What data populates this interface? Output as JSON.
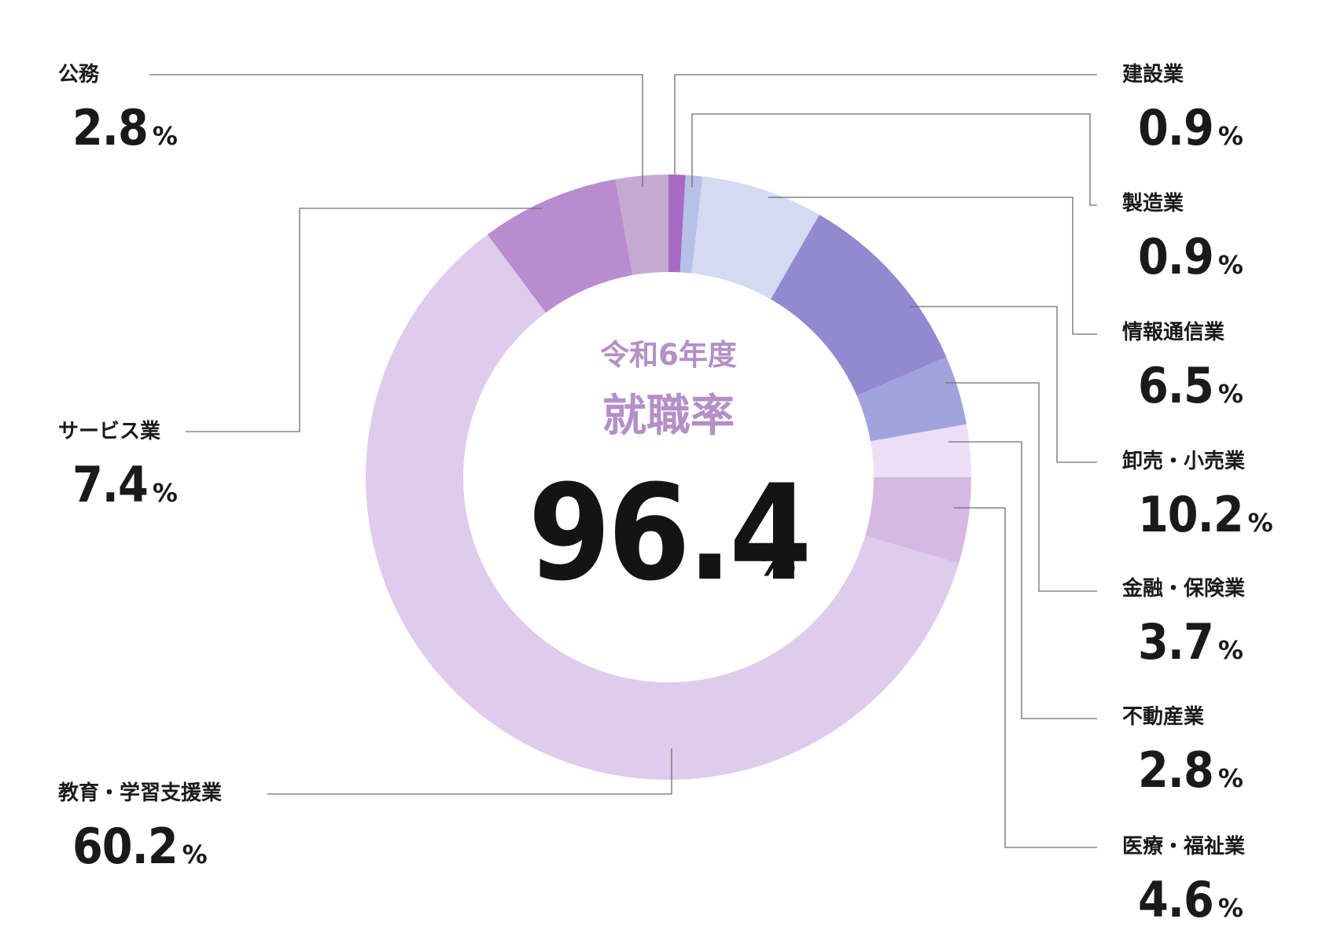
{
  "colors": {
    "background": "#ffffff",
    "accent": "#b48fc8",
    "text": "#1a1a1a",
    "leader": "#6e6e6e"
  },
  "center": {
    "subtitle": "令和6年度",
    "title": "就職率",
    "value": "96.4",
    "unit": "%"
  },
  "chart_data": {
    "type": "pie",
    "donut": true,
    "unit": "%",
    "start": "top",
    "direction": "clockwise",
    "categories": [
      "建設業",
      "製造業",
      "情報通信業",
      "卸売・小売業",
      "金融・保険業",
      "不動産業",
      "医療・福祉業",
      "教育・学習支援業",
      "サービス業",
      "公務"
    ],
    "values": [
      0.9,
      0.9,
      6.5,
      10.2,
      3.7,
      2.8,
      4.6,
      60.2,
      7.4,
      2.8
    ],
    "labels": [
      "0.9",
      "0.9",
      "6.5",
      "10.2",
      "3.7",
      "2.8",
      "4.6",
      "60.2",
      "7.4",
      "2.8"
    ],
    "colors": [
      "#a76bc4",
      "#b7c0e8",
      "#d5daf3",
      "#9389d0",
      "#a1a3de",
      "#ecdff5",
      "#d6b8e4",
      "#dfcbeb",
      "#b98ccf",
      "#c5a9d2"
    ],
    "label_sides": [
      "right",
      "right",
      "right",
      "right",
      "right",
      "right",
      "right",
      "left",
      "left",
      "left"
    ]
  }
}
